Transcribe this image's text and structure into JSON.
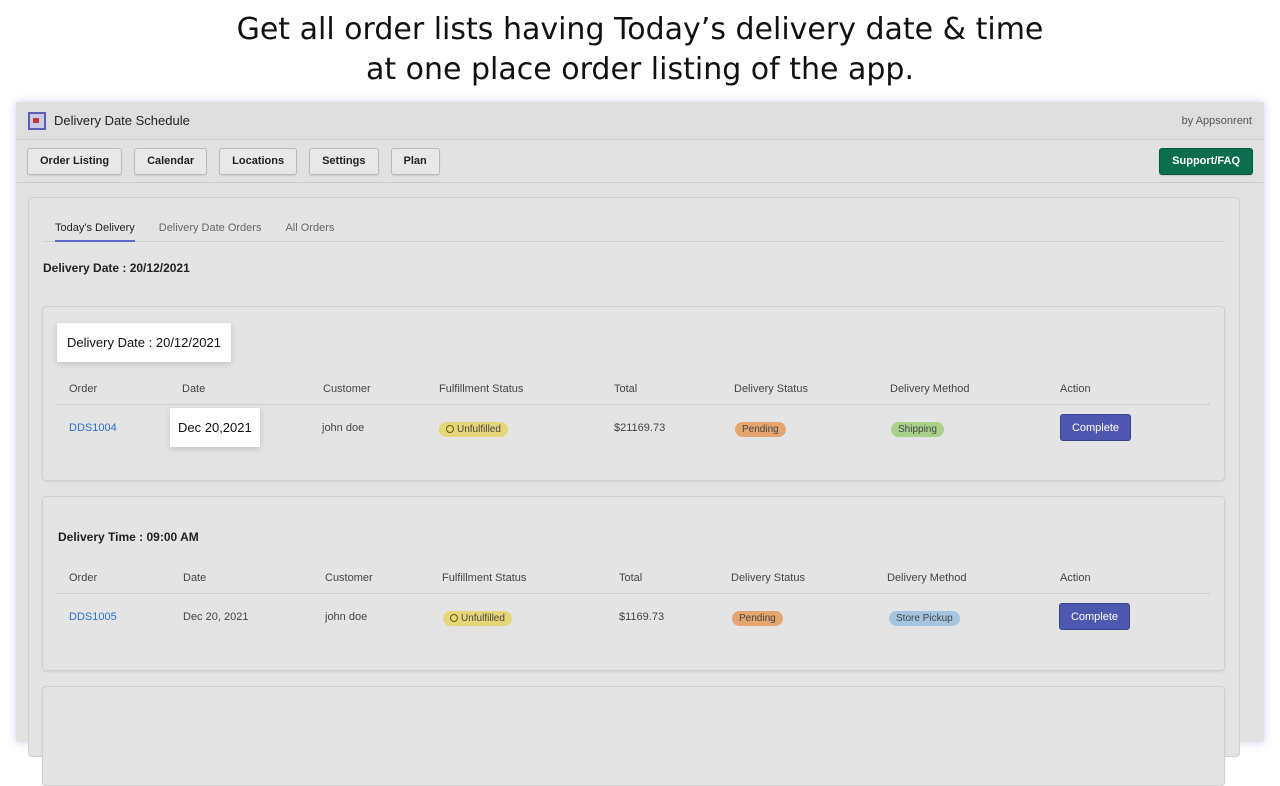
{
  "headline": {
    "line1": "Get all order lists having Today’s delivery date & time",
    "line2": "at one place order listing of the app."
  },
  "app": {
    "title": "Delivery Date Schedule",
    "by": "by Appsonrent",
    "logo_icon": "calendar-app-icon"
  },
  "nav": {
    "items": [
      "Order Listing",
      "Calendar",
      "Locations",
      "Settings",
      "Plan"
    ],
    "support": "Support/FAQ"
  },
  "tabs": [
    "Today's Delivery",
    "Delivery Date Orders",
    "All Orders"
  ],
  "heading": "Delivery Date : 20/12/2021",
  "columns": [
    "Order",
    "Date",
    "Customer",
    "Fulfillment Status",
    "Total",
    "Delivery Status",
    "Delivery Method",
    "Action"
  ],
  "cards": [
    {
      "title": "Delivery Date : 20/12/2021",
      "rows": [
        {
          "order": "DDS1004",
          "date": "Dec 20,2021",
          "customer": "john doe",
          "fulfillment": "Unfulfilled",
          "total": "$21169.73",
          "delivery_status": "Pending",
          "method": "Shipping",
          "action": "Complete"
        }
      ]
    },
    {
      "title": "Delivery Time : 09:00 AM",
      "rows": [
        {
          "order": "DDS1005",
          "date": "Dec 20, 2021",
          "customer": "john doe",
          "fulfillment": "Unfulfilled",
          "total": "$1169.73",
          "delivery_status": "Pending",
          "method": "Store Pickup",
          "action": "Complete"
        }
      ]
    }
  ],
  "colors": {
    "accent": "#4f58b0",
    "support": "#0a6e4f",
    "link": "#2c6ecb"
  }
}
